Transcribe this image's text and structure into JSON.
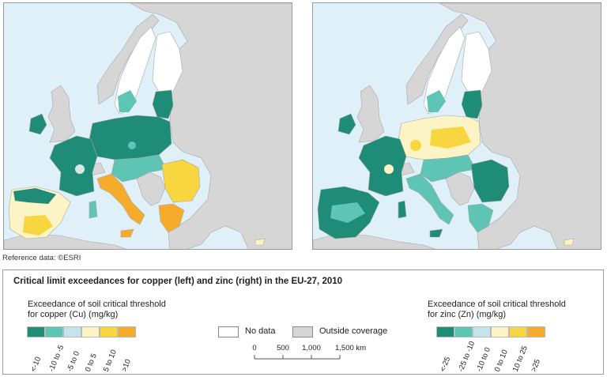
{
  "reference": "Reference data: ©ESRI",
  "title": "Critical limit exceedances for copper (left) and zinc (right) in the EU-27, 2010",
  "copper_legend": {
    "heading_line1": "Exceedance of soil critical threshold",
    "heading_line2": "for copper (Cu) (mg/kg)",
    "classes": [
      "<-10",
      "-10 to -5",
      "-5 to 0",
      "0 to 5",
      "5 to 10",
      ">10"
    ]
  },
  "zinc_legend": {
    "heading_line1": "Exceedance of soil critical threshold",
    "heading_line2": "for zinc (Zn) (mg/kg)",
    "classes": [
      "<-25",
      "-25 to -10",
      "-10 to 0",
      "0 to 10",
      "10 to 25",
      ">25"
    ]
  },
  "class_colors": [
    "#1e8c77",
    "#5ec4b4",
    "#c2e4ea",
    "#fcf4c4",
    "#f8d640",
    "#f6ab2a"
  ],
  "no_data_label": "No data",
  "outside_label": "Outside coverage",
  "scalebar": {
    "ticks": [
      "0",
      "500",
      "1,000",
      "1,500 km"
    ]
  },
  "colors": {
    "sea": "#dff0f9",
    "outside": "#d6d6d6",
    "no_data": "#ffffff",
    "border": "#9a9a9a"
  }
}
